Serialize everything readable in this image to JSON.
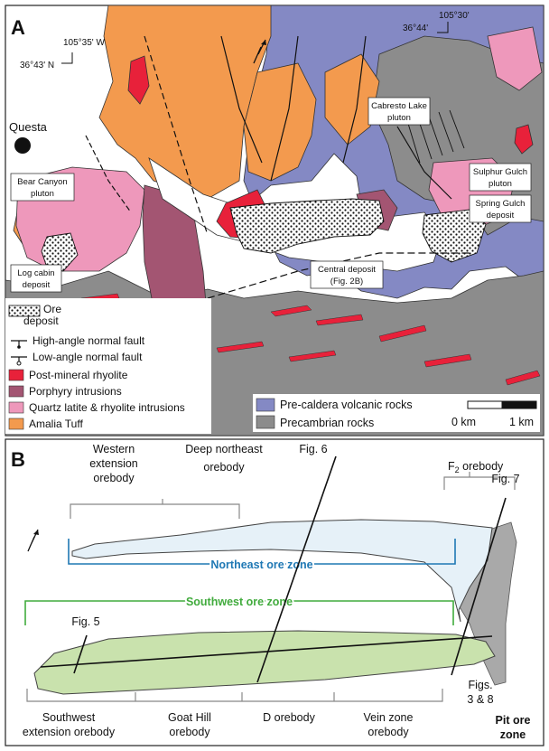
{
  "panelA": {
    "letter": "A",
    "coords": {
      "west_lon": "105°35' W",
      "west_lat": "36°43' N",
      "east_lon": "105°30'",
      "east_lat": "36°44'"
    },
    "town": "Questa",
    "labels": {
      "cabresto_1": "Cabresto Lake",
      "cabresto_2": "pluton",
      "bear_1": "Bear Canyon",
      "bear_2": "pluton",
      "sulphur_1": "Sulphur Gulch",
      "sulphur_2": "pluton",
      "spring_1": "Spring Gulch",
      "spring_2": "deposit",
      "central_1": "Central deposit",
      "central_2": "(Fig. 2B)",
      "logcabin_1": "Log cabin",
      "logcabin_2": "deposit"
    },
    "legend": {
      "ore_1": "Ore",
      "ore_2": "deposit",
      "high_fault": "High-angle normal fault",
      "low_fault": "Low-angle normal fault",
      "post_rhyolite": "Post-mineral rhyolite",
      "porphyry": "Porphyry intrusions",
      "quartz_latite": "Quartz latite & rhyolite intrusions",
      "amalia": "Amalia Tuff",
      "pre_caldera": "Pre-caldera volcanic rocks",
      "precambrian": "Precambrian rocks"
    },
    "scale": {
      "zero": "0 km",
      "one": "1 km",
      "km": 1
    },
    "colors": {
      "amalia": "#f39a4e",
      "pre_caldera": "#8489c4",
      "precambrian": "#8c8c8c",
      "quartz_latite": "#ee98bb",
      "porphyry": "#a35572",
      "post_rhyolite": "#e8213a"
    }
  },
  "panelB": {
    "letter": "B",
    "labels": {
      "western_1": "Western",
      "western_2": "extension",
      "western_3": "orebody",
      "deep_1": "Deep northeast",
      "deep_2": "orebody",
      "fig6": "Fig. 6",
      "f2_main": "F",
      "f2_sub": "2",
      "f2_rest": " orebody",
      "fig7": "Fig. 7",
      "northeast_zone": "Northeast ore zone",
      "southwest_zone": "Southwest ore zone",
      "fig5": "Fig. 5",
      "figs38_1": "Figs.",
      "figs38_2": "3 & 8",
      "sw_ext_1": "Southwest",
      "sw_ext_2": "extension orebody",
      "goat_1": "Goat Hill",
      "goat_2": "orebody",
      "d_orebody": "D orebody",
      "vein_1": "Vein zone",
      "vein_2": "orebody",
      "pit_1": "Pit ore",
      "pit_2": "zone"
    },
    "colors": {
      "northeast": "#1f78b4",
      "southwest": "#41ab3d",
      "ne_fill": "#e6f1f8",
      "sw_fill": "#c9e2ad",
      "pit_fill": "#a9a9a9"
    }
  }
}
